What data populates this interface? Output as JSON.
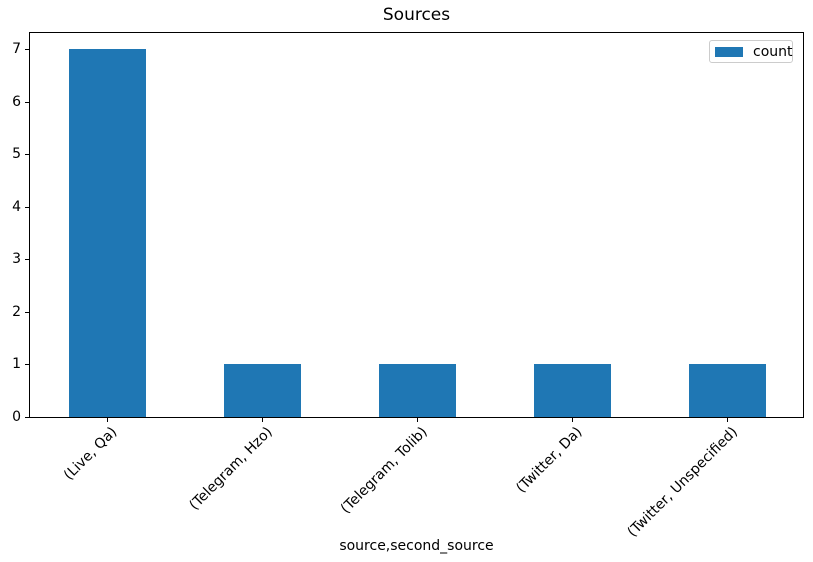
{
  "figure": {
    "background": "#ffffff",
    "axis_color": "#000000"
  },
  "chart_data": {
    "type": "bar",
    "title": "Sources",
    "xlabel": "source,second_source",
    "ylabel": "",
    "categories": [
      "(Live, Qa)",
      "(Telegram, Hzo)",
      "(Telegram, Tolib)",
      "(Twitter, Da)",
      "(Twitter, Unspecified)"
    ],
    "series": [
      {
        "name": "count",
        "values": [
          7,
          1,
          1,
          1,
          1
        ],
        "color": "#1f77b4"
      }
    ],
    "ylim": [
      0,
      7.35
    ],
    "yticks": [
      0,
      1,
      2,
      3,
      4,
      5,
      6,
      7
    ],
    "xtick_rotation_deg": 45,
    "grid": false,
    "bar_width_fraction": 0.5,
    "legend": {
      "position": "upper right",
      "entries": [
        "count"
      ],
      "swatch_color": "#1f77b4"
    }
  }
}
